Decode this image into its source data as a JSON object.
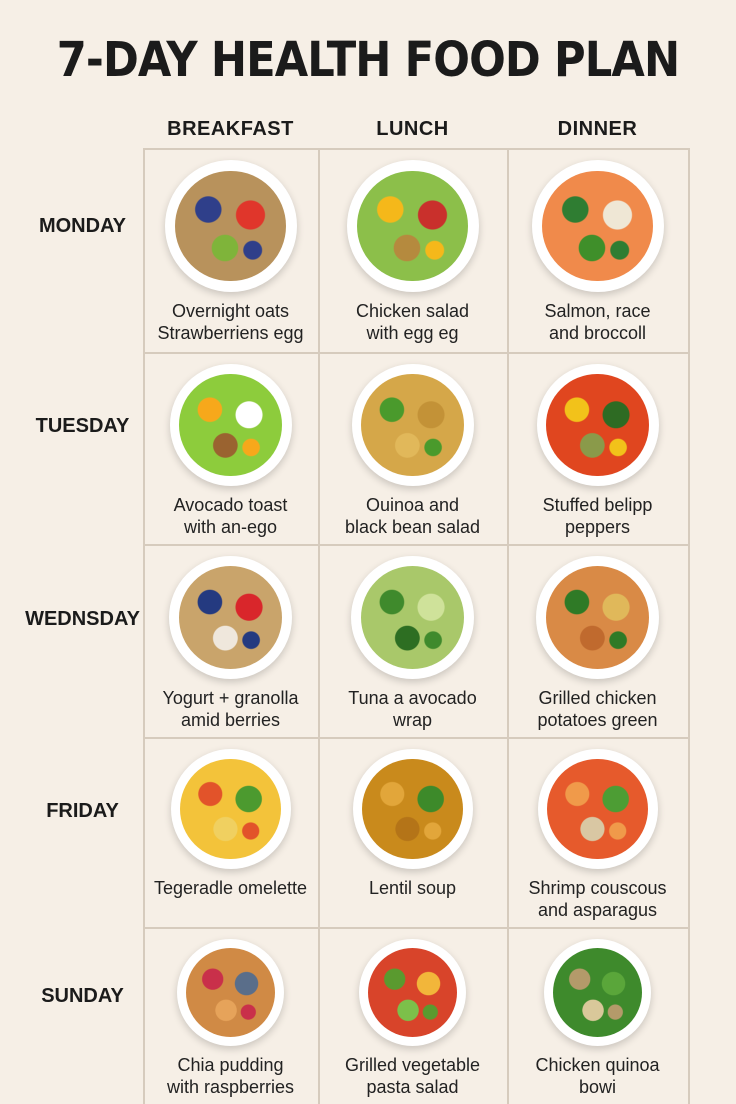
{
  "title": "7-DAY HEALTH FOOD PLAN",
  "columns": [
    "BREAKFAST",
    "LUNCH",
    "DINNER"
  ],
  "rows": [
    {
      "day": "MONDAY",
      "meals": [
        {
          "caption": [
            "Overnight oats",
            "Strawberriens egg"
          ],
          "colors": [
            "#b8925c",
            "#2f3f8a",
            "#e0362b",
            "#7fb43a"
          ]
        },
        {
          "caption": [
            "Chicken salad",
            "with egg  eg"
          ],
          "colors": [
            "#8cbf4a",
            "#f5b81a",
            "#c9302c",
            "#b58a3e"
          ]
        },
        {
          "caption": [
            "Salmon, race",
            "and broccoll"
          ],
          "colors": [
            "#f08a4b",
            "#2f7d32",
            "#efe7d5",
            "#3f8f2a"
          ]
        }
      ]
    },
    {
      "day": "TUESDAY",
      "meals": [
        {
          "caption": [
            "Avocado toast",
            "with an-ego"
          ],
          "colors": [
            "#8dcc3c",
            "#f7a81b",
            "#ffffff",
            "#9a6330"
          ]
        },
        {
          "caption": [
            "Ouinoa and",
            "black bean salad"
          ],
          "colors": [
            "#d5a749",
            "#4a9a2c",
            "#c39237",
            "#e1b85a"
          ]
        },
        {
          "caption": [
            "Stuffed belipp",
            "peppers"
          ],
          "colors": [
            "#e0461f",
            "#f2c21a",
            "#2e6b23",
            "#8a9a4a"
          ]
        }
      ]
    },
    {
      "day": "WEDNSDAY",
      "meals": [
        {
          "caption": [
            "Yogurt + granolla",
            "amid berries"
          ],
          "colors": [
            "#c9a46b",
            "#243a80",
            "#d9262b",
            "#efe7dc"
          ]
        },
        {
          "caption": [
            "Tuna a avocado",
            "wrap"
          ],
          "colors": [
            "#a9c86a",
            "#3f8a2c",
            "#cfe29a",
            "#2d6e22"
          ]
        },
        {
          "caption": [
            "Grilled chicken",
            "potatoes green"
          ],
          "colors": [
            "#d98a46",
            "#2f7a26",
            "#e0b85a",
            "#c06a2e"
          ]
        }
      ]
    },
    {
      "day": "FRIDAY",
      "meals": [
        {
          "caption": [
            "Tegeradle omelette"
          ],
          "colors": [
            "#f3c33a",
            "#e2532a",
            "#4c9a2f",
            "#f0d060"
          ]
        },
        {
          "caption": [
            "Lentil soup"
          ],
          "colors": [
            "#c98a1c",
            "#e2a63a",
            "#3d8a2a",
            "#b47418"
          ]
        },
        {
          "caption": [
            "Shrimp couscous",
            "and asparagus"
          ],
          "colors": [
            "#e65a2c",
            "#f09a4a",
            "#4d9d34",
            "#d9c7a3"
          ]
        }
      ]
    },
    {
      "day": "SUNDAY",
      "meals": [
        {
          "caption": [
            "Chia pudding",
            "with raspberries"
          ],
          "colors": [
            "#d08a45",
            "#c9304a",
            "#5a6e8a",
            "#e6a35a"
          ]
        },
        {
          "caption": [
            "Grilled vegetable",
            "pasta salad"
          ],
          "colors": [
            "#d8442a",
            "#5a9a2f",
            "#f2b63a",
            "#7cc04a"
          ]
        },
        {
          "caption": [
            "Chicken  quinoa",
            "bowi"
          ],
          "colors": [
            "#3e8a2c",
            "#b49a6a",
            "#5aa63a",
            "#d9c89a"
          ]
        }
      ]
    }
  ]
}
